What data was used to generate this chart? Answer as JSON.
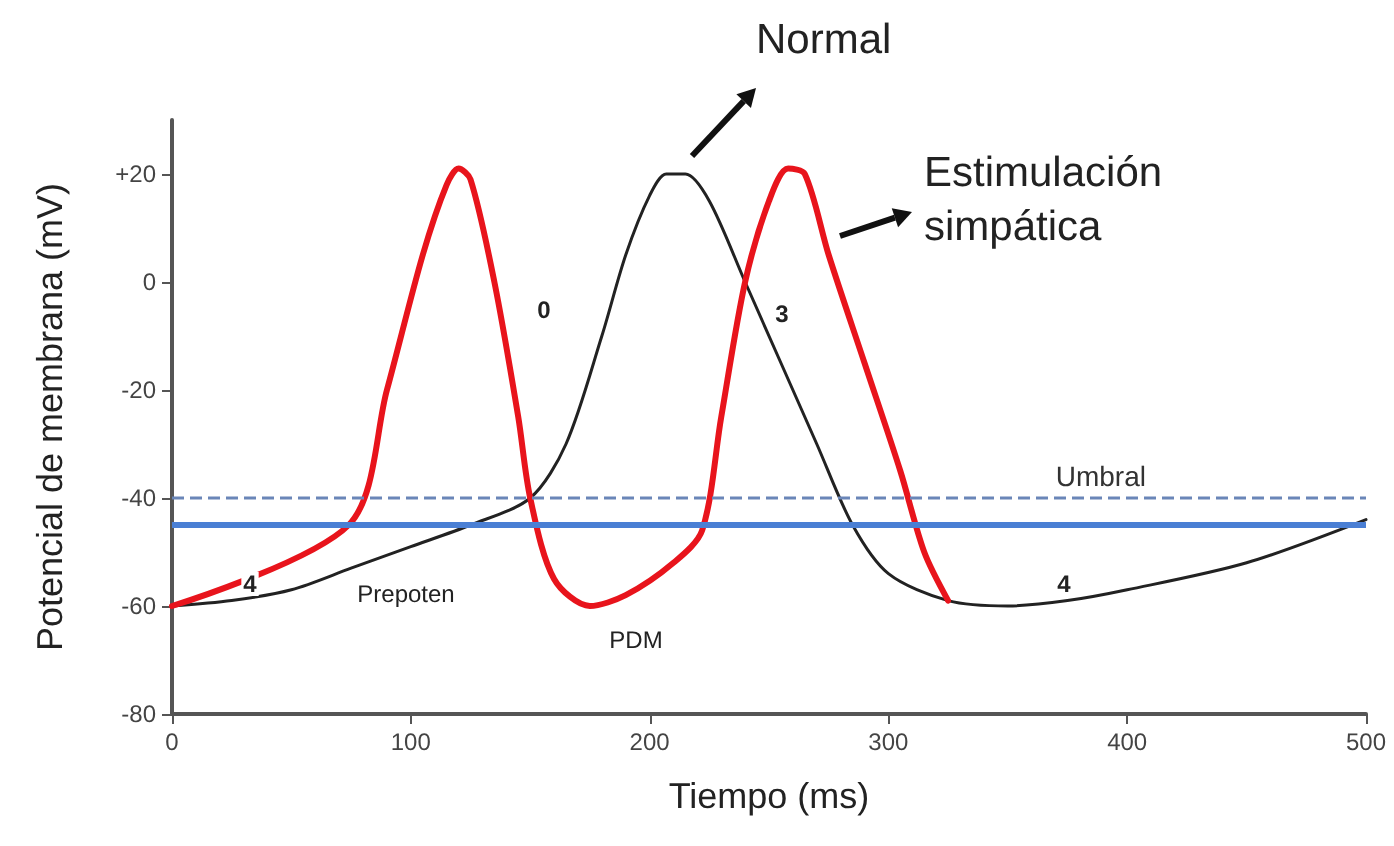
{
  "chart_data": {
    "type": "line",
    "xlabel": "Tiempo (ms)",
    "ylabel": "Potencial de membrana (mV)",
    "xlim": [
      0,
      500
    ],
    "xticks": [
      0,
      100,
      200,
      300,
      400,
      500
    ],
    "ylim": [
      -80,
      30
    ],
    "yticks": [
      -80,
      -60,
      -40,
      -20,
      0,
      {
        "value": 20,
        "label": "+20"
      }
    ],
    "grid": false,
    "legend": false,
    "marker": "none",
    "series": [
      {
        "name": "Normal",
        "color": "#222222",
        "x": [
          0,
          25,
          50,
          75,
          100,
          125,
          150,
          165,
          180,
          190,
          200,
          207,
          215,
          225,
          240,
          255,
          270,
          285,
          300,
          325,
          350,
          375,
          400,
          450,
          500
        ],
        "values": [
          -60,
          -59,
          -57,
          -53,
          -49,
          -45,
          -40,
          -30,
          -10,
          5,
          16,
          20,
          20,
          15,
          0,
          -15,
          -30,
          -45,
          -54,
          -59,
          -60,
          -59,
          -57,
          -52,
          -44
        ]
      },
      {
        "name": "Estimulación simpática",
        "color": "#e8141c",
        "x": [
          0,
          74,
          90,
          105,
          115,
          120,
          125,
          135,
          145,
          150,
          160,
          175,
          190,
          210,
          222,
          230,
          240,
          250,
          258,
          265,
          275,
          290,
          305,
          315,
          325
        ],
        "values": [
          -60,
          -45,
          -20,
          5,
          18,
          21,
          19,
          0,
          -25,
          -40,
          -55,
          -60,
          -58,
          -52,
          -46,
          -25,
          0,
          15,
          21,
          20,
          5,
          -15,
          -35,
          -50,
          -59
        ]
      }
    ],
    "ref_lines": [
      {
        "axis": "y",
        "value": -40,
        "label": "Umbral",
        "color": "#6a86b8",
        "line_style": "dashed"
      },
      {
        "axis": "y",
        "value": -45,
        "label": null,
        "color": "#4a7fd4",
        "line_style": "solid"
      }
    ],
    "annotations": [
      "4",
      "Prepoten",
      "PDM",
      "0",
      "3",
      "4"
    ]
  }
}
